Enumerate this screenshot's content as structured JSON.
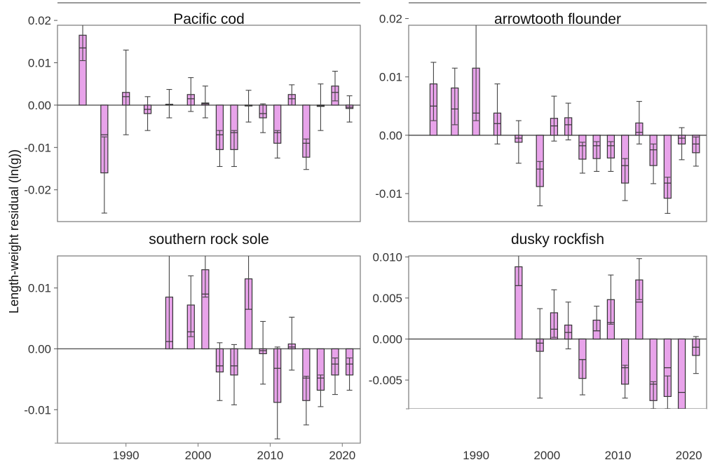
{
  "figure": {
    "ylabel": "Length-weight residual (ln(g))",
    "bar_color": "#e8a3ea",
    "bar_stroke": "#333333",
    "panel_border": "#777777"
  },
  "chart_data": [
    {
      "type": "bar",
      "title": "Pacific cod",
      "xlabel": "",
      "ylabel": "Length-weight residual (ln(g))",
      "xlim": [
        1980.5,
        2022.5
      ],
      "ylim": [
        -0.0275,
        0.0225
      ],
      "xticks": [
        1990,
        2000,
        2010,
        2020
      ],
      "xtick_labels": [
        "1990",
        "2000",
        "2010",
        "2020"
      ],
      "yticks": [
        0.02,
        0.01,
        0.0,
        -0.01,
        -0.02
      ],
      "ytick_labels": [
        "0.02",
        "0.01",
        "0.00",
        "-0.01",
        "-0.02"
      ],
      "show_x_labels": false,
      "x": [
        1984,
        1987,
        1990,
        1993,
        1996,
        1999,
        2001,
        2003,
        2005,
        2007,
        2009,
        2011,
        2013,
        2015,
        2017,
        2019,
        2021
      ],
      "values": [
        0.0165,
        -0.016,
        0.003,
        -0.002,
        0.0002,
        0.0025,
        0.0005,
        -0.0105,
        -0.0105,
        -0.0002,
        -0.003,
        -0.009,
        0.0025,
        -0.0123,
        -0.0003,
        0.0045,
        -0.0008
      ],
      "median": [
        0.0135,
        -0.007,
        0.002,
        -0.001,
        0.0001,
        0.0015,
        0.0003,
        -0.007,
        -0.0065,
        -0.0001,
        -0.002,
        -0.0065,
        0.0015,
        -0.009,
        -0.0002,
        0.003,
        -0.0005
      ],
      "err_low": [
        0.0105,
        -0.0255,
        -0.007,
        -0.006,
        -0.003,
        -0.0015,
        -0.003,
        -0.0145,
        -0.0145,
        -0.004,
        -0.0065,
        -0.0125,
        0.0,
        -0.0152,
        -0.006,
        0.001,
        -0.004
      ],
      "err_high": [
        0.0205,
        -0.0075,
        0.013,
        0.002,
        0.0037,
        0.0065,
        0.0045,
        -0.006,
        -0.006,
        0.0035,
        0.0003,
        -0.006,
        0.0048,
        -0.008,
        0.005,
        0.008,
        0.0022
      ]
    },
    {
      "type": "bar",
      "title": "arrowtooth flounder",
      "xlabel": "",
      "ylabel": "",
      "xlim": [
        1980.5,
        2022.5
      ],
      "ylim": [
        -0.0148,
        0.0215
      ],
      "xticks": [
        1990,
        2000,
        2010,
        2020
      ],
      "xtick_labels": [
        "1990",
        "2000",
        "2010",
        "2020"
      ],
      "yticks": [
        0.02,
        0.01,
        0.0,
        -0.01
      ],
      "ytick_labels": [
        "0.02",
        "0.01",
        "0.00",
        "-0.01"
      ],
      "show_x_labels": false,
      "x": [
        1984,
        1987,
        1990,
        1993,
        1996,
        1999,
        2001,
        2003,
        2005,
        2007,
        2009,
        2011,
        2013,
        2015,
        2017,
        2019,
        2021
      ],
      "values": [
        0.0088,
        0.0081,
        0.0115,
        0.0038,
        -0.0012,
        -0.0088,
        0.0029,
        0.003,
        -0.0041,
        -0.004,
        -0.0039,
        -0.0082,
        0.0021,
        -0.0052,
        -0.0108,
        -0.0015,
        -0.003
      ],
      "median": [
        0.005,
        0.0045,
        0.0038,
        0.002,
        -0.0005,
        -0.0058,
        0.0016,
        0.0018,
        -0.0018,
        -0.0018,
        -0.0018,
        -0.0052,
        0.0005,
        -0.0025,
        -0.0082,
        -0.0005,
        -0.0015
      ],
      "err_low": [
        0.0025,
        0.0018,
        0.0025,
        -0.0015,
        -0.0048,
        -0.0121,
        -0.001,
        -0.0008,
        -0.0065,
        -0.0062,
        -0.0062,
        -0.0112,
        -0.0015,
        -0.0083,
        -0.0134,
        -0.0042,
        -0.0053
      ],
      "err_high": [
        0.0125,
        0.0115,
        0.0195,
        0.0088,
        0.0025,
        -0.0045,
        0.0067,
        0.0055,
        -0.0012,
        -0.0011,
        -0.0011,
        -0.004,
        0.0058,
        -0.0015,
        -0.0072,
        0.0013,
        -0.0003
      ]
    },
    {
      "type": "bar",
      "title": "southern rock sole",
      "xlabel": "",
      "ylabel": "",
      "xlim": [
        1980.5,
        2022.5
      ],
      "ylim": [
        -0.0155,
        0.0178
      ],
      "xticks": [
        1990,
        2000,
        2010,
        2020
      ],
      "xtick_labels": [
        "1990",
        "2000",
        "2010",
        "2020"
      ],
      "yticks": [
        0.01,
        0.0,
        -0.01
      ],
      "ytick_labels": [
        "0.01",
        "0.00",
        "-0.01"
      ],
      "show_x_labels": true,
      "x": [
        1996,
        1999,
        2001,
        2003,
        2005,
        2007,
        2009,
        2011,
        2013,
        2015,
        2017,
        2019,
        2021
      ],
      "values": [
        0.0085,
        0.0072,
        0.013,
        -0.0038,
        -0.0043,
        0.0115,
        -0.0008,
        -0.0088,
        0.0008,
        -0.0085,
        -0.0068,
        -0.0043,
        -0.0043
      ],
      "median": [
        0.0012,
        0.0028,
        0.009,
        -0.0028,
        -0.0028,
        0.0065,
        -0.0003,
        -0.0032,
        0.0003,
        -0.0048,
        -0.0048,
        -0.0025,
        -0.0025
      ],
      "err_low": [
        0.0,
        0.002,
        0.0085,
        -0.0085,
        -0.0092,
        0.0065,
        -0.0058,
        -0.0148,
        -0.0035,
        -0.0125,
        -0.0095,
        -0.0075,
        -0.0068
      ],
      "err_high": [
        0.0158,
        0.012,
        0.0172,
        0.001,
        0.0007,
        0.0163,
        0.0045,
        0.0003,
        0.0052,
        -0.0045,
        -0.0043,
        -0.0015,
        -0.0015
      ]
    },
    {
      "type": "bar",
      "title": "dusky rockfish",
      "xlabel": "",
      "ylabel": "",
      "xlim": [
        1980.5,
        2022.5
      ],
      "ylim": [
        -0.0085,
        0.012
      ],
      "xticks": [
        1990,
        2000,
        2010,
        2020
      ],
      "xtick_labels": [
        "1990",
        "2000",
        "2010",
        "2020"
      ],
      "yticks": [
        0.01,
        0.005,
        0.0,
        -0.005
      ],
      "ytick_labels": [
        "0.010",
        "0.005",
        "0.000",
        "-0.005"
      ],
      "show_x_labels": true,
      "x": [
        1996,
        1999,
        2001,
        2003,
        2005,
        2007,
        2009,
        2011,
        2013,
        2015,
        2017,
        2019,
        2021
      ],
      "values": [
        0.0088,
        -0.0015,
        0.0032,
        0.0017,
        -0.0048,
        0.0023,
        0.0048,
        -0.0055,
        0.0072,
        -0.0075,
        -0.007,
        -0.0085,
        -0.002
      ],
      "median": [
        0.0065,
        -0.0005,
        0.0012,
        0.0008,
        -0.0025,
        0.001,
        0.002,
        -0.0035,
        0.0045,
        -0.0055,
        -0.0035,
        -0.0065,
        -0.001
      ],
      "err_low": [
        0.0065,
        -0.0072,
        0.0002,
        -0.0012,
        -0.0068,
        0.001,
        0.0018,
        -0.0072,
        0.0048,
        -0.0085,
        -0.0085,
        -0.0085,
        -0.0042
      ],
      "err_high": [
        0.011,
        0.0037,
        0.006,
        0.0045,
        -0.0025,
        0.004,
        0.0078,
        -0.0032,
        0.0098,
        -0.0052,
        -0.0045,
        -0.0085,
        0.0003
      ]
    }
  ]
}
